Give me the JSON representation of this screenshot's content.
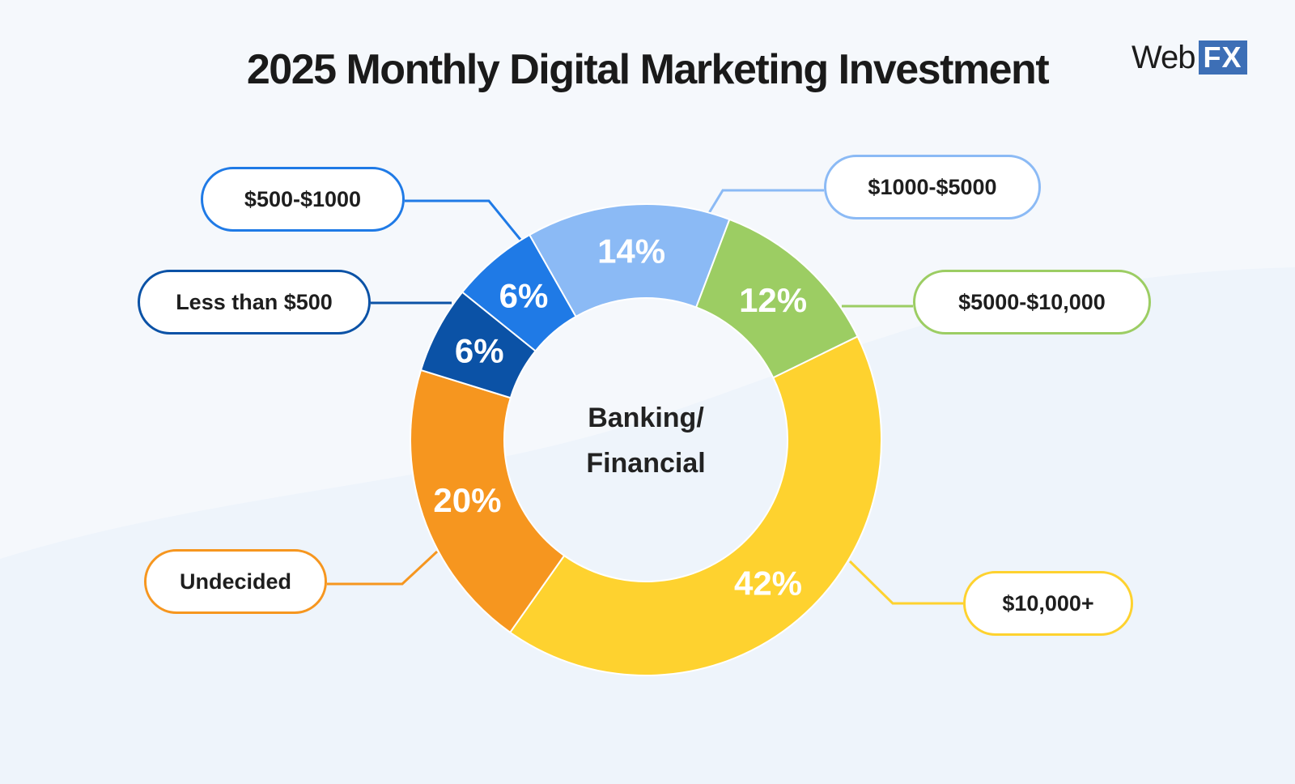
{
  "title": "2025 Monthly Digital Marketing Investment",
  "logo": {
    "text": "Web",
    "badge": "FX"
  },
  "center_label": {
    "line1": "Banking/",
    "line2": "Financial"
  },
  "chart_data": {
    "type": "pie",
    "variant": "donut",
    "title": "2025 Monthly Digital Marketing Investment",
    "segments": [
      {
        "label": "$10,000+",
        "value": 42,
        "display": "42%",
        "color": "#fed22f"
      },
      {
        "label": "Undecided",
        "value": 20,
        "display": "20%",
        "color": "#f6961f"
      },
      {
        "label": "Less than $500",
        "value": 6,
        "display": "6%",
        "color": "#0b52a6"
      },
      {
        "label": "$500-$1000",
        "value": 6,
        "display": "6%",
        "color": "#1f7ae6"
      },
      {
        "label": "$1000-$5000",
        "value": 14,
        "display": "14%",
        "color": "#8bbaf5"
      },
      {
        "label": "$5000-$10,000",
        "value": 12,
        "display": "12%",
        "color": "#9ccd63"
      }
    ],
    "legend": "callouts",
    "colors": {
      "$10,000+": "#fed22f",
      "Undecided": "#f6961f",
      "Less than $500": "#0b52a6",
      "$500-$1000": "#1f7ae6",
      "$1000-$5000": "#8bbaf5",
      "$5000-$10,000": "#9ccd63"
    }
  }
}
